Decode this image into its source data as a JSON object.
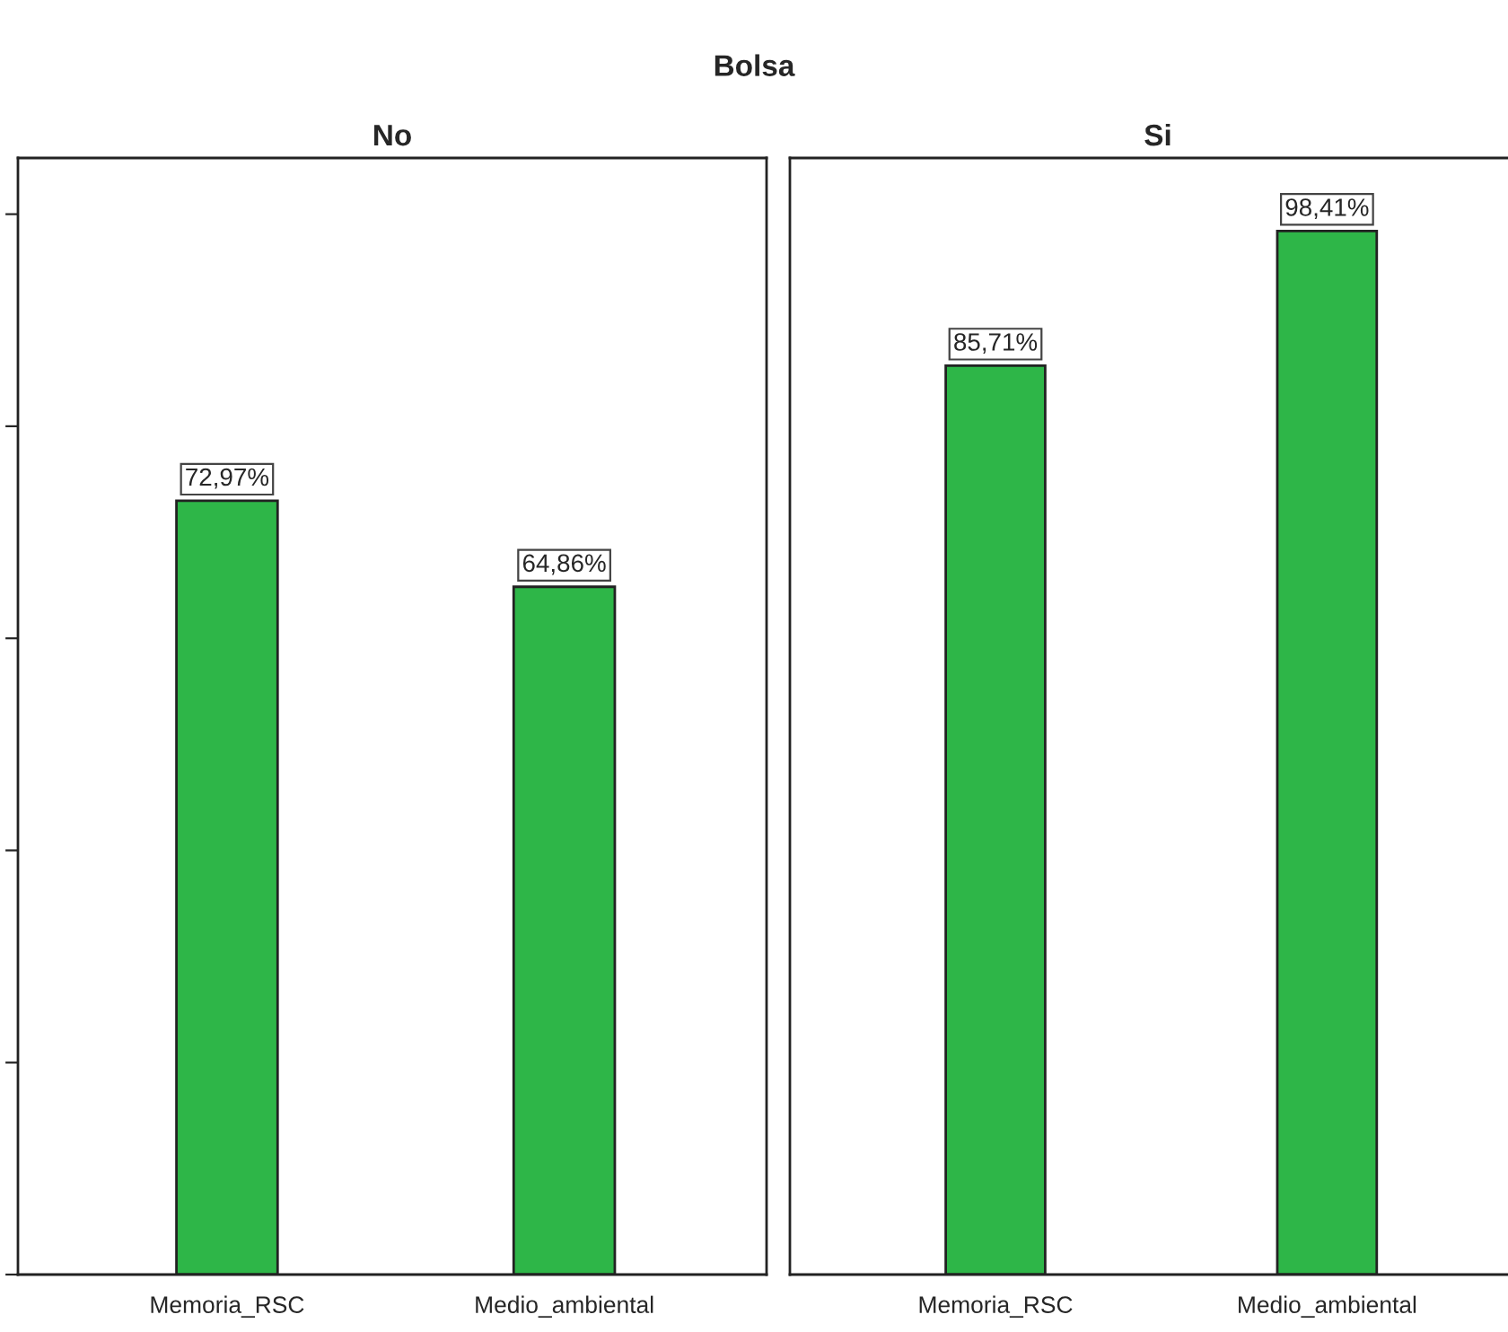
{
  "chart_data": [
    {
      "type": "bar",
      "title": "No",
      "annotations": [
        "Bolsa"
      ],
      "categories": [
        "Memoria_RSC",
        "Medio_ambiental"
      ],
      "values": [
        72.97,
        64.86
      ],
      "value_labels": [
        "72,97%",
        "64,86%"
      ],
      "color": "#2eb648",
      "ylim": [
        0,
        105.3
      ],
      "yticks": [
        {
          "value": 0,
          "label": null
        },
        {
          "value": 20,
          "label": null
        },
        {
          "value": 40,
          "label": null
        },
        {
          "value": 60,
          "label": null
        },
        {
          "value": 80,
          "label": null
        },
        {
          "value": 100,
          "label": null
        }
      ],
      "tick_labels": "x"
    },
    {
      "type": "bar",
      "title": "Si",
      "categories": [
        "Memoria_RSC",
        "Medio_ambiental"
      ],
      "values": [
        85.71,
        98.41
      ],
      "value_labels": [
        "85,71%",
        "98,41%"
      ],
      "color": "#2eb648",
      "ylim": [
        0,
        105.3
      ],
      "tick_labels": "x"
    }
  ]
}
